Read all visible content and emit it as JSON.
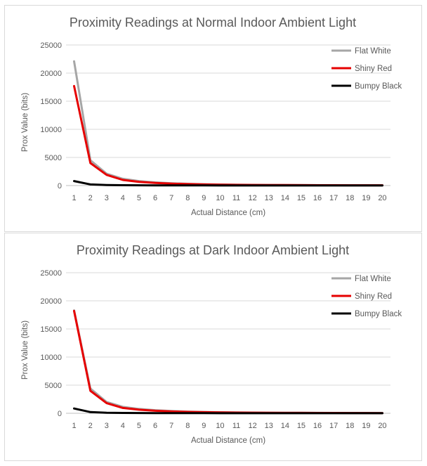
{
  "chart_data": [
    {
      "type": "line",
      "title": "Proximity Readings at Normal Indoor Ambient Light",
      "xlabel": "Actual Distance (cm)",
      "ylabel": "Prox Value (bits)",
      "categories": [
        "1",
        "2",
        "3",
        "4",
        "5",
        "6",
        "7",
        "8",
        "9",
        "10",
        "11",
        "12",
        "13",
        "14",
        "15",
        "16",
        "17",
        "18",
        "19",
        "20"
      ],
      "ylim": [
        0,
        25000
      ],
      "yticks": [
        "0",
        "5000",
        "10000",
        "15000",
        "20000",
        "25000"
      ],
      "grid": true,
      "legend": "top-right",
      "series": [
        {
          "name": "Flat White",
          "color": "#a6a6a6",
          "values": [
            22100,
            4500,
            2100,
            1200,
            800,
            560,
            410,
            310,
            240,
            190,
            155,
            130,
            110,
            95,
            85,
            75,
            68,
            62,
            57,
            52
          ]
        },
        {
          "name": "Shiny Red",
          "color": "#e60000",
          "values": [
            17700,
            4000,
            1900,
            1000,
            650,
            460,
            340,
            260,
            200,
            160,
            130,
            110,
            95,
            82,
            72,
            65,
            58,
            53,
            48,
            44
          ]
        },
        {
          "name": "Bumpy Black",
          "color": "#000000",
          "values": [
            800,
            200,
            100,
            60,
            45,
            35,
            28,
            24,
            20,
            18,
            16,
            15,
            14,
            13,
            12,
            12,
            11,
            11,
            10,
            10
          ]
        }
      ]
    },
    {
      "type": "line",
      "title": "Proximity Readings at Dark Indoor Ambient Light",
      "xlabel": "Actual Distance (cm)",
      "ylabel": "Prox Value (bits)",
      "categories": [
        "1",
        "2",
        "3",
        "4",
        "5",
        "6",
        "7",
        "8",
        "9",
        "10",
        "11",
        "12",
        "13",
        "14",
        "15",
        "16",
        "17",
        "18",
        "19",
        "20"
      ],
      "ylim": [
        0,
        25000
      ],
      "yticks": [
        "0",
        "5000",
        "10000",
        "15000",
        "20000",
        "25000"
      ],
      "grid": true,
      "legend": "top-right",
      "series": [
        {
          "name": "Flat White",
          "color": "#a6a6a6",
          "values": [
            18300,
            4400,
            2000,
            1150,
            780,
            550,
            400,
            300,
            235,
            185,
            150,
            125,
            105,
            92,
            82,
            73,
            66,
            60,
            55,
            50
          ]
        },
        {
          "name": "Shiny Red",
          "color": "#e60000",
          "values": [
            18200,
            4000,
            1800,
            950,
            640,
            450,
            330,
            250,
            195,
            155,
            128,
            108,
            93,
            80,
            70,
            63,
            57,
            52,
            47,
            43
          ]
        },
        {
          "name": "Bumpy Black",
          "color": "#000000",
          "values": [
            850,
            210,
            105,
            62,
            46,
            36,
            29,
            24,
            21,
            18,
            16,
            15,
            14,
            13,
            12,
            12,
            11,
            11,
            10,
            10
          ]
        }
      ]
    }
  ]
}
